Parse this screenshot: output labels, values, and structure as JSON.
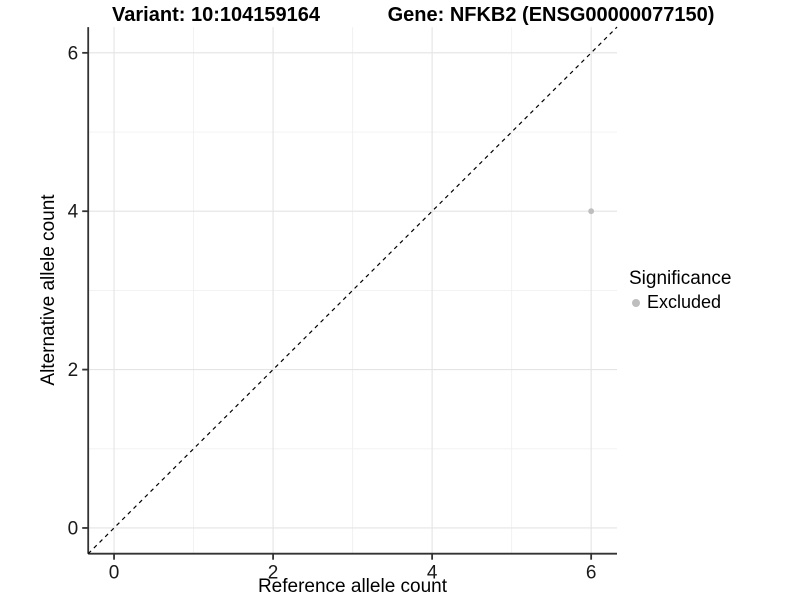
{
  "chart_data": {
    "type": "scatter",
    "title_left": "Variant: 10:104159164",
    "title_right": "Gene: NFKB2 (ENSG00000077150)",
    "xlabel": "Reference allele count",
    "ylabel": "Alternative allele count",
    "xlim": [
      -0.325,
      6.325
    ],
    "ylim": [
      -0.325,
      6.325
    ],
    "x_ticks": [
      0,
      2,
      4,
      6
    ],
    "y_ticks": [
      0,
      2,
      4,
      6
    ],
    "x_minor_gridlines": [
      1,
      3,
      5
    ],
    "y_minor_gridlines": [
      1,
      3,
      5
    ],
    "grid": "major and minor, light gray, on white panel",
    "identity_line": {
      "style": "dashed",
      "slope": 1,
      "intercept": 0,
      "color": "#000000"
    },
    "series": [
      {
        "name": "Excluded",
        "color": "#bebebe",
        "points": [
          {
            "x": 6,
            "y": 4
          }
        ]
      }
    ],
    "legend": {
      "position": "right",
      "title": "Significance",
      "entries": [
        {
          "label": "Excluded",
          "color": "#bebebe"
        }
      ]
    },
    "colors": {
      "grid_major": "#e4e4e4",
      "grid_minor": "#f0f0f0",
      "axis_line": "#333333",
      "tick_text": "#1a1a1a",
      "point": "#bebebe"
    }
  }
}
